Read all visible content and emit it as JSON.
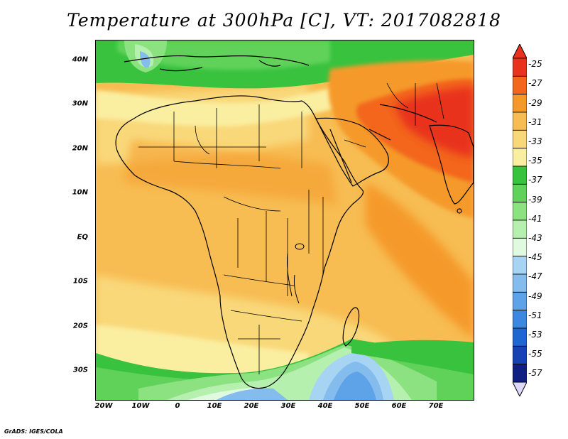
{
  "title": "Temperature at 300hPa [C], VT: 2017082818",
  "footer": "GrADS: IGES/COLA",
  "map": {
    "region": "Africa and Arabian Peninsula",
    "lat_labels": [
      "40N",
      "30N",
      "20N",
      "10N",
      "EQ",
      "10S",
      "20S",
      "30S"
    ],
    "lat_values": [
      40,
      30,
      20,
      10,
      0,
      -10,
      -20,
      -30
    ],
    "lon_labels": [
      "20W",
      "10W",
      "0",
      "10E",
      "20E",
      "30E",
      "40E",
      "50E",
      "60E",
      "70E"
    ],
    "lon_values": [
      -20,
      -10,
      0,
      10,
      20,
      30,
      40,
      50,
      60,
      70
    ],
    "lat_range": [
      -36.5,
      44.5
    ],
    "lon_range": [
      -22,
      80
    ]
  },
  "colorbar": {
    "labels": [
      "-25",
      "-27",
      "-29",
      "-31",
      "-33",
      "-35",
      "-37",
      "-39",
      "-41",
      "-43",
      "-45",
      "-47",
      "-49",
      "-51",
      "-53",
      "-55",
      "-57"
    ],
    "colors": [
      "#e8321e",
      "#f3661c",
      "#f59a2a",
      "#f7bc52",
      "#f9d87a",
      "#faeea0",
      "#38c23e",
      "#60d25a",
      "#8ce180",
      "#b6f0ae",
      "#e0fae0",
      "#a8d4f4",
      "#84bcee",
      "#5ea3e8",
      "#3c88e0",
      "#2066d2",
      "#1642b4",
      "#101f82"
    ],
    "top_arrow_color": "#e8321e",
    "bottom_arrow_color": "#ddd8f8"
  }
}
